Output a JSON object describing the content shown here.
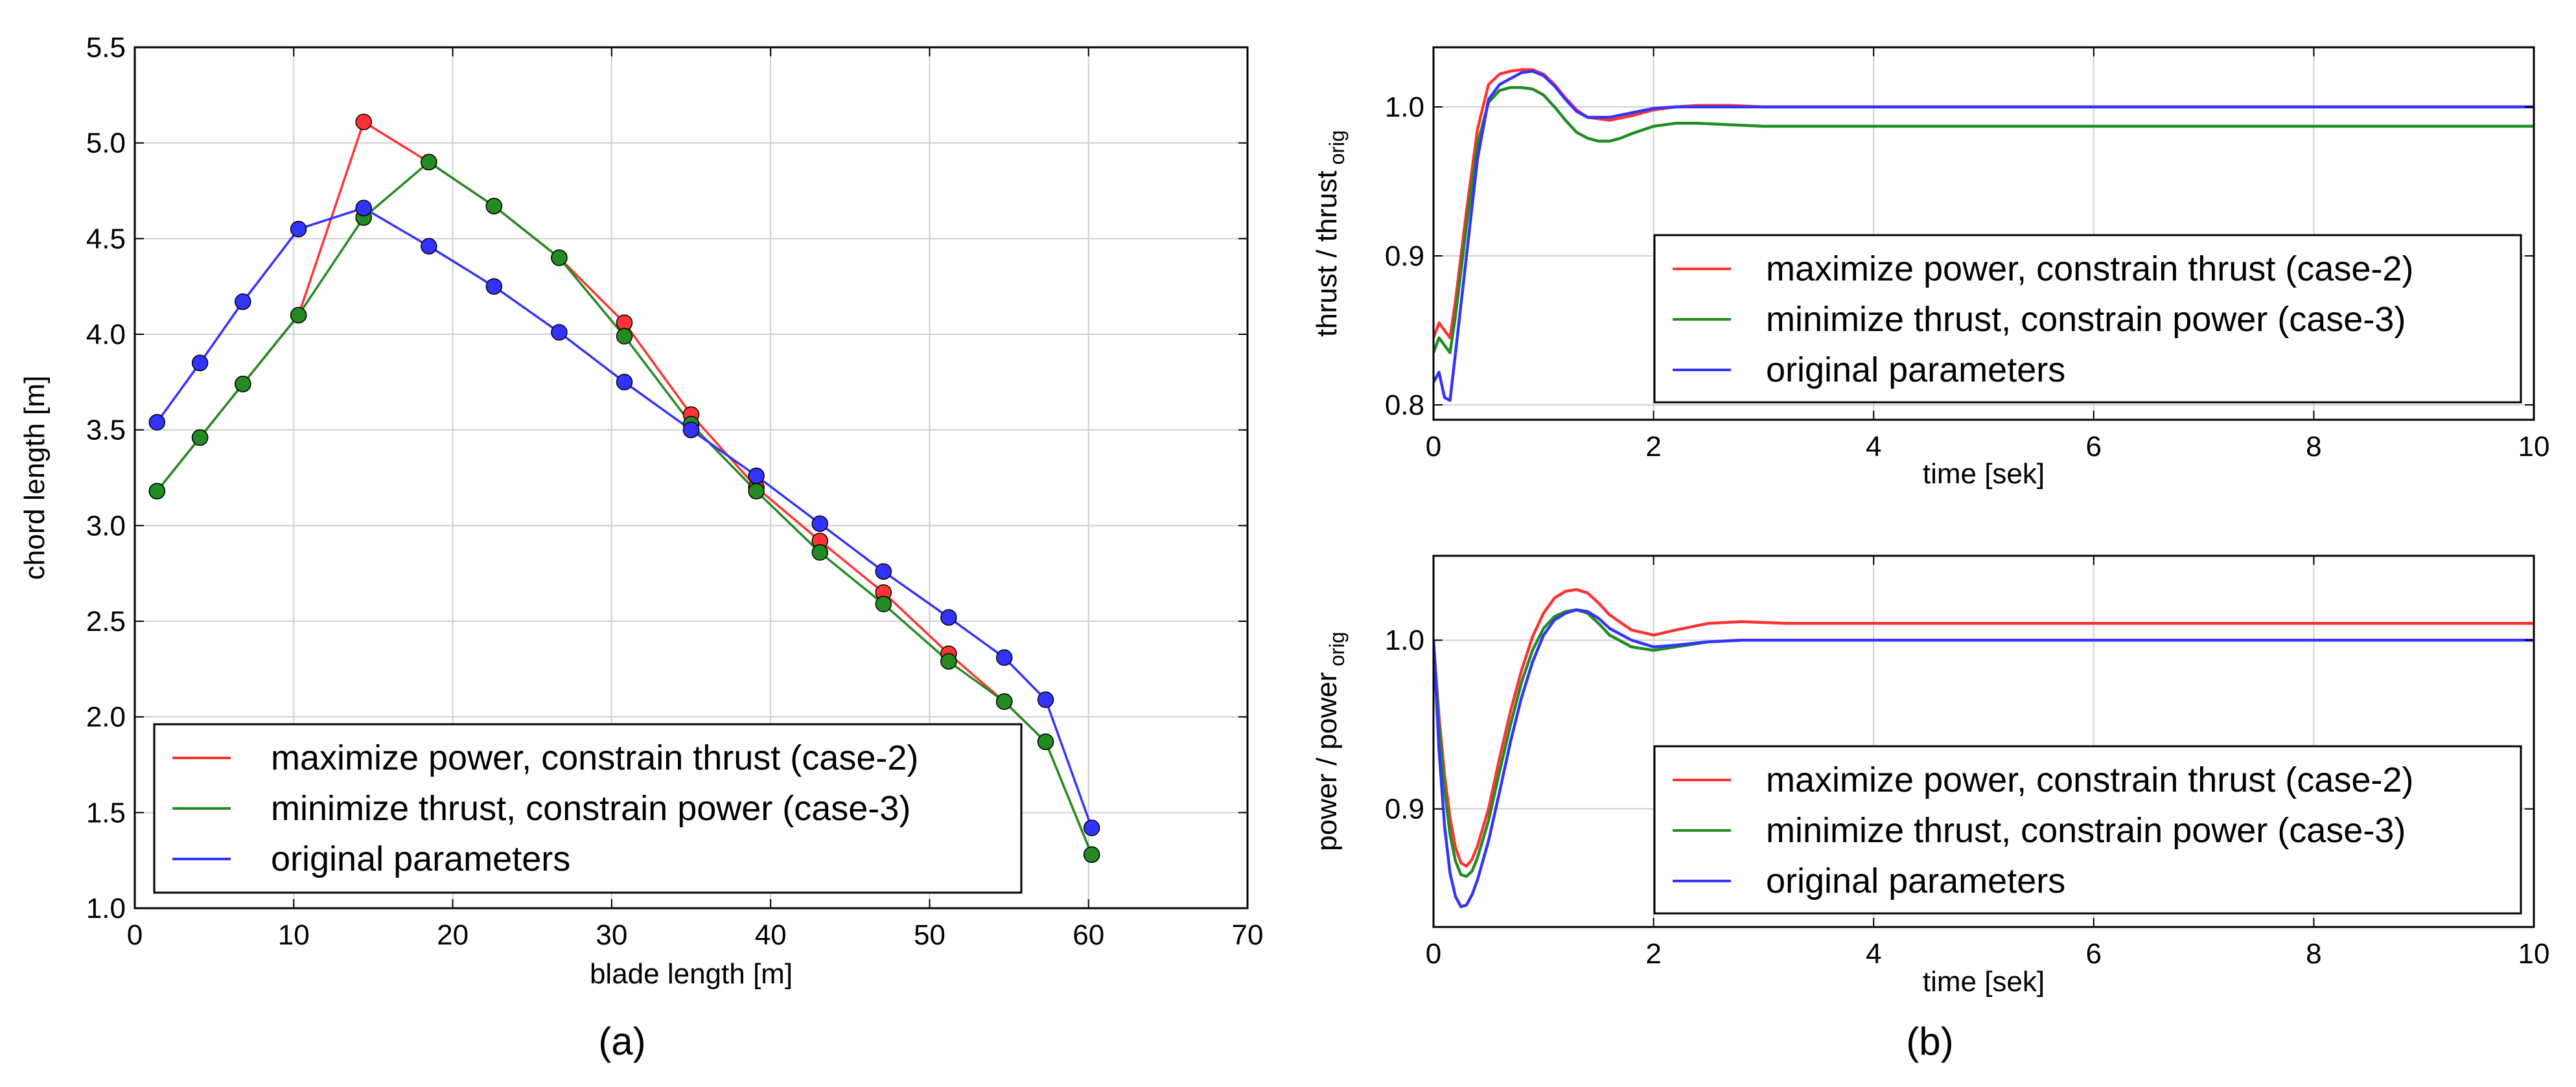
{
  "chart_data": [
    {
      "id": "a",
      "type": "line",
      "caption": "(a)",
      "xlabel": "blade length [m]",
      "ylabel": "chord length [m]",
      "xlim": [
        0,
        70
      ],
      "ylim": [
        1.0,
        5.5
      ],
      "xticks": [
        0,
        10,
        20,
        30,
        40,
        50,
        60,
        70
      ],
      "yticks": [
        1.0,
        1.5,
        2.0,
        2.5,
        3.0,
        3.5,
        4.0,
        4.5,
        5.0,
        5.5
      ],
      "xtick_labels": [
        "0",
        "10",
        "20",
        "30",
        "40",
        "50",
        "60",
        "70"
      ],
      "ytick_labels": [
        "1.0",
        "1.5",
        "2.0",
        "2.5",
        "3.0",
        "3.5",
        "4.0",
        "4.5",
        "5.0",
        "5.5"
      ],
      "grid": true,
      "legend_position": "lower-left",
      "markers": true,
      "series": [
        {
          "name": "maximize power, constrain thrust (case-2)",
          "color": "#ff3333",
          "x": [
            1.4,
            4.1,
            6.8,
            10.3,
            14.4,
            18.5,
            22.6,
            26.7,
            30.8,
            35.0,
            39.1,
            43.1,
            47.1,
            51.2,
            54.7,
            57.3,
            60.2
          ],
          "y": [
            3.18,
            3.46,
            3.74,
            4.1,
            5.11,
            4.9,
            4.67,
            4.4,
            4.06,
            3.58,
            3.2,
            2.92,
            2.65,
            2.33,
            2.08,
            1.87,
            1.28
          ]
        },
        {
          "name": "minimize thrust, constrain power (case-3)",
          "color": "#228b22",
          "x": [
            1.4,
            4.1,
            6.8,
            10.3,
            14.4,
            18.5,
            22.6,
            26.7,
            30.8,
            35.0,
            39.1,
            43.1,
            47.1,
            51.2,
            54.7,
            57.3,
            60.2
          ],
          "y": [
            3.18,
            3.46,
            3.74,
            4.1,
            4.61,
            4.9,
            4.67,
            4.4,
            3.99,
            3.53,
            3.18,
            2.86,
            2.59,
            2.29,
            2.08,
            1.87,
            1.28
          ]
        },
        {
          "name": "original parameters",
          "color": "#3333ff",
          "x": [
            1.4,
            4.1,
            6.8,
            10.3,
            14.4,
            18.5,
            22.6,
            26.7,
            30.8,
            35.0,
            39.1,
            43.1,
            47.1,
            51.2,
            54.7,
            57.3,
            60.2
          ],
          "y": [
            3.54,
            3.85,
            4.17,
            4.55,
            4.66,
            4.46,
            4.25,
            4.01,
            3.75,
            3.5,
            3.26,
            3.01,
            2.76,
            2.52,
            2.31,
            2.09,
            1.42
          ]
        }
      ]
    },
    {
      "id": "b-top",
      "type": "line",
      "caption": "(b)",
      "xlabel": "time [sek]",
      "ylabel": "thrust / thrust",
      "ylabel_sub": "orig",
      "xlim": [
        0,
        10
      ],
      "ylim": [
        0.79,
        1.04
      ],
      "xticks": [
        0,
        2,
        4,
        6,
        8,
        10
      ],
      "yticks": [
        0.8,
        0.9,
        1.0
      ],
      "xtick_labels": [
        "0",
        "2",
        "4",
        "6",
        "8",
        "10"
      ],
      "ytick_labels": [
        "0.8",
        "0.9",
        "1.0"
      ],
      "grid": true,
      "legend_position": "lower-right",
      "markers": false,
      "series": [
        {
          "name": "maximize power, constrain thrust (case-2)",
          "color": "#ff3333",
          "x": [
            0,
            0.05,
            0.1,
            0.15,
            0.2,
            0.3,
            0.4,
            0.5,
            0.6,
            0.7,
            0.8,
            0.9,
            1.0,
            1.1,
            1.2,
            1.3,
            1.4,
            1.6,
            1.8,
            2.0,
            2.2,
            2.4,
            2.7,
            3.0,
            3.5,
            4,
            5,
            6,
            7,
            8,
            9,
            10
          ],
          "y": [
            0.845,
            0.855,
            0.85,
            0.845,
            0.87,
            0.93,
            0.985,
            1.015,
            1.022,
            1.024,
            1.025,
            1.025,
            1.022,
            1.015,
            1.006,
            0.998,
            0.993,
            0.991,
            0.994,
            0.998,
            1.0,
            1.001,
            1.001,
            1.0,
            1.0,
            1.0,
            1.0,
            1.0,
            1.0,
            1.0,
            1.0,
            1.0
          ]
        },
        {
          "name": "minimize thrust, constrain power (case-3)",
          "color": "#228b22",
          "x": [
            0,
            0.05,
            0.1,
            0.15,
            0.2,
            0.3,
            0.4,
            0.5,
            0.6,
            0.7,
            0.8,
            0.9,
            1.0,
            1.1,
            1.2,
            1.3,
            1.4,
            1.5,
            1.6,
            1.7,
            1.8,
            2.0,
            2.2,
            2.4,
            2.7,
            3.0,
            3.5,
            4,
            5,
            6,
            7,
            8,
            9,
            10
          ],
          "y": [
            0.835,
            0.845,
            0.84,
            0.835,
            0.86,
            0.92,
            0.975,
            1.003,
            1.011,
            1.013,
            1.013,
            1.012,
            1.008,
            1.0,
            0.991,
            0.983,
            0.979,
            0.977,
            0.977,
            0.979,
            0.982,
            0.987,
            0.989,
            0.989,
            0.988,
            0.987,
            0.987,
            0.987,
            0.987,
            0.987,
            0.987,
            0.987,
            0.987,
            0.987
          ]
        },
        {
          "name": "original parameters",
          "color": "#3333ff",
          "x": [
            0,
            0.05,
            0.1,
            0.15,
            0.2,
            0.3,
            0.4,
            0.5,
            0.6,
            0.7,
            0.8,
            0.9,
            1.0,
            1.1,
            1.2,
            1.3,
            1.4,
            1.6,
            1.8,
            2.0,
            2.2,
            2.5,
            3.0,
            3.5,
            4,
            5,
            6,
            7,
            8,
            9,
            10
          ],
          "y": [
            0.815,
            0.822,
            0.805,
            0.803,
            0.835,
            0.9,
            0.965,
            1.005,
            1.015,
            1.019,
            1.023,
            1.024,
            1.021,
            1.014,
            1.005,
            0.997,
            0.993,
            0.993,
            0.996,
            0.999,
            1.0,
            1.0,
            1.0,
            1.0,
            1.0,
            1.0,
            1.0,
            1.0,
            1.0,
            1.0,
            1.0
          ]
        }
      ]
    },
    {
      "id": "b-bottom",
      "type": "line",
      "caption": "",
      "xlabel": "time [sek]",
      "ylabel": "power / power",
      "ylabel_sub": "orig",
      "xlim": [
        0,
        10
      ],
      "ylim": [
        0.83,
        1.05
      ],
      "xticks": [
        0,
        2,
        4,
        6,
        8,
        10
      ],
      "yticks": [
        0.9,
        1.0
      ],
      "xtick_labels": [
        "0",
        "2",
        "4",
        "6",
        "8",
        "10"
      ],
      "ytick_labels": [
        "0.9",
        "1.0"
      ],
      "grid": true,
      "legend_position": "lower-right",
      "markers": false,
      "series": [
        {
          "name": "maximize power, constrain thrust (case-2)",
          "color": "#ff3333",
          "x": [
            0,
            0.05,
            0.1,
            0.15,
            0.2,
            0.25,
            0.3,
            0.35,
            0.4,
            0.5,
            0.6,
            0.7,
            0.8,
            0.9,
            1.0,
            1.1,
            1.2,
            1.3,
            1.4,
            1.5,
            1.6,
            1.8,
            2.0,
            2.2,
            2.5,
            2.8,
            3.2,
            3.6,
            4,
            5,
            6,
            7,
            8,
            9,
            10
          ],
          "y": [
            1.0,
            0.955,
            0.92,
            0.895,
            0.877,
            0.868,
            0.866,
            0.87,
            0.878,
            0.9,
            0.93,
            0.958,
            0.982,
            1.002,
            1.016,
            1.025,
            1.029,
            1.03,
            1.028,
            1.022,
            1.015,
            1.006,
            1.003,
            1.006,
            1.01,
            1.011,
            1.01,
            1.01,
            1.01,
            1.01,
            1.01,
            1.01,
            1.01,
            1.01,
            1.01
          ]
        },
        {
          "name": "minimize thrust, constrain power (case-3)",
          "color": "#228b22",
          "x": [
            0,
            0.05,
            0.1,
            0.15,
            0.2,
            0.25,
            0.3,
            0.35,
            0.4,
            0.5,
            0.6,
            0.7,
            0.8,
            0.9,
            1.0,
            1.1,
            1.2,
            1.3,
            1.4,
            1.5,
            1.6,
            1.8,
            2.0,
            2.2,
            2.5,
            2.8,
            3.2,
            3.6,
            4,
            5,
            6,
            7,
            8,
            9,
            10
          ],
          "y": [
            1.0,
            0.95,
            0.912,
            0.885,
            0.869,
            0.861,
            0.86,
            0.863,
            0.871,
            0.893,
            0.922,
            0.95,
            0.975,
            0.994,
            1.007,
            1.014,
            1.017,
            1.018,
            1.016,
            1.01,
            1.003,
            0.996,
            0.994,
            0.996,
            0.999,
            1.0,
            1.0,
            1.0,
            1.0,
            1.0,
            1.0,
            1.0,
            1.0,
            1.0,
            1.0
          ]
        },
        {
          "name": "original parameters",
          "color": "#3333ff",
          "x": [
            0,
            0.05,
            0.1,
            0.15,
            0.2,
            0.25,
            0.3,
            0.35,
            0.4,
            0.5,
            0.6,
            0.7,
            0.8,
            0.9,
            1.0,
            1.1,
            1.2,
            1.3,
            1.4,
            1.5,
            1.6,
            1.8,
            2.0,
            2.2,
            2.5,
            2.8,
            3.2,
            3.6,
            4,
            5,
            6,
            7,
            8,
            9,
            10
          ],
          "y": [
            1.0,
            0.935,
            0.89,
            0.862,
            0.848,
            0.842,
            0.843,
            0.849,
            0.858,
            0.881,
            0.91,
            0.94,
            0.966,
            0.987,
            1.003,
            1.012,
            1.016,
            1.018,
            1.017,
            1.013,
            1.007,
            1.0,
            0.996,
            0.997,
            0.999,
            1.0,
            1.0,
            1.0,
            1.0,
            1.0,
            1.0,
            1.0,
            1.0,
            1.0,
            1.0
          ]
        }
      ]
    }
  ]
}
